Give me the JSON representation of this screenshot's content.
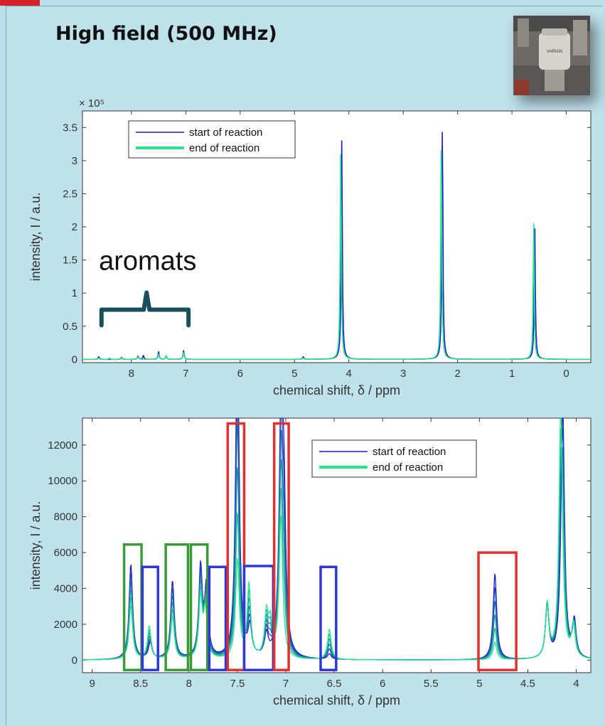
{
  "header": {
    "title": "High field (500 MHz)"
  },
  "photo": {
    "label": "VARIAN"
  },
  "colors": {
    "start": "#1a1acc",
    "end": "#27e58c",
    "red": "#e2302e",
    "green": "#3a9a3a",
    "blue": "#2d39d6",
    "brace": "#17505a"
  },
  "chart_data": [
    {
      "type": "line",
      "title": "",
      "xlabel": "chemical shift,  δ / ppm",
      "ylabel": "intensity,  I / a.u.",
      "y_exponent": "× 10⁵",
      "xlim": [
        8.9,
        -0.45
      ],
      "ylim": [
        -0.05,
        3.75
      ],
      "xticks": [
        8,
        7,
        6,
        5,
        4,
        3,
        2,
        1,
        0
      ],
      "yticks": [
        0,
        0.5,
        1,
        1.5,
        2,
        2.5,
        3,
        3.5
      ],
      "legend_position": "top-left",
      "series": [
        {
          "name": "start of reaction",
          "peaks": [
            [
              8.6,
              0.04
            ],
            [
              8.18,
              0.03
            ],
            [
              7.88,
              0.05
            ],
            [
              7.78,
              0.06
            ],
            [
              7.5,
              0.12
            ],
            [
              7.36,
              0.05
            ],
            [
              7.04,
              0.13
            ],
            [
              4.84,
              0.04
            ],
            [
              4.13,
              3.35
            ],
            [
              2.28,
              3.55
            ],
            [
              0.58,
              2.0
            ]
          ]
        },
        {
          "name": "end of reaction",
          "peaks": [
            [
              8.6,
              0.02
            ],
            [
              8.4,
              0.02
            ],
            [
              8.18,
              0.02
            ],
            [
              7.88,
              0.04
            ],
            [
              7.5,
              0.08
            ],
            [
              7.36,
              0.06
            ],
            [
              7.04,
              0.1
            ],
            [
              4.84,
              0.02
            ],
            [
              4.15,
              3.2
            ],
            [
              2.3,
              3.35
            ],
            [
              0.6,
              2.05
            ]
          ]
        }
      ],
      "annotations": [
        {
          "text": "aromats",
          "x": 7.7,
          "y": 1.35
        }
      ]
    },
    {
      "type": "line",
      "title": "",
      "xlabel": "chemical shift,  δ / ppm",
      "ylabel": "intensity,  I / a.u.",
      "xlim": [
        9.1,
        3.85
      ],
      "ylim": [
        -700,
        13500
      ],
      "xticks": [
        9,
        8.5,
        8,
        7.5,
        7,
        6.5,
        6,
        5.5,
        5,
        4.5,
        4
      ],
      "xtick_labels": [
        "9",
        "8.5",
        "8",
        "7.5",
        "7",
        "6.5",
        "6",
        "5.5",
        "5",
        "4.5",
        "4"
      ],
      "yticks": [
        0,
        2000,
        4000,
        6000,
        8000,
        10000,
        12000
      ],
      "legend_position": "top-right",
      "series": [
        {
          "name": "start of reaction",
          "peaks": [
            [
              8.6,
              5300
            ],
            [
              8.4,
              900
            ],
            [
              8.17,
              4350
            ],
            [
              7.88,
              5000
            ],
            [
              7.82,
              3800
            ],
            [
              7.5,
              11500
            ],
            [
              7.5,
              6800
            ],
            [
              7.37,
              1600
            ],
            [
              7.2,
              1200
            ],
            [
              7.05,
              13000
            ],
            [
              7.02,
              8000
            ],
            [
              6.55,
              300
            ],
            [
              4.84,
              4800
            ],
            [
              4.3,
              2900
            ],
            [
              4.14,
              14000
            ],
            [
              4.02,
              2000
            ]
          ]
        },
        {
          "name": "end of reaction",
          "peaks": [
            [
              8.6,
              3000
            ],
            [
              8.41,
              1850
            ],
            [
              8.17,
              2400
            ],
            [
              7.88,
              3300
            ],
            [
              7.83,
              2600
            ],
            [
              7.5,
              5500
            ],
            [
              7.38,
              4100
            ],
            [
              7.2,
              2400
            ],
            [
              7.16,
              1800
            ],
            [
              7.05,
              8000
            ],
            [
              6.55,
              1700
            ],
            [
              4.84,
              1000
            ],
            [
              4.3,
              3000
            ],
            [
              4.16,
              14000
            ],
            [
              4.03,
              1800
            ]
          ]
        }
      ],
      "boxes": [
        {
          "color": "green",
          "x": [
            8.67,
            8.49
          ],
          "y": [
            -550,
            6450
          ]
        },
        {
          "color": "blue",
          "x": [
            8.48,
            8.32
          ],
          "y": [
            -550,
            5200
          ]
        },
        {
          "color": "green",
          "x": [
            8.24,
            8.01
          ],
          "y": [
            -550,
            6450
          ]
        },
        {
          "color": "green",
          "x": [
            7.98,
            7.81
          ],
          "y": [
            -550,
            6450
          ]
        },
        {
          "color": "blue",
          "x": [
            7.79,
            7.62
          ],
          "y": [
            -550,
            5200
          ]
        },
        {
          "color": "red",
          "x": [
            7.6,
            7.43
          ],
          "y": [
            -550,
            13200
          ]
        },
        {
          "color": "blue",
          "x": [
            7.43,
            7.13
          ],
          "y": [
            -550,
            5250
          ]
        },
        {
          "color": "red",
          "x": [
            7.12,
            6.97
          ],
          "y": [
            -550,
            13200
          ]
        },
        {
          "color": "blue",
          "x": [
            6.64,
            6.48
          ],
          "y": [
            -550,
            5200
          ]
        },
        {
          "color": "red",
          "x": [
            5.01,
            4.62
          ],
          "y": [
            -550,
            6000
          ]
        }
      ]
    }
  ]
}
